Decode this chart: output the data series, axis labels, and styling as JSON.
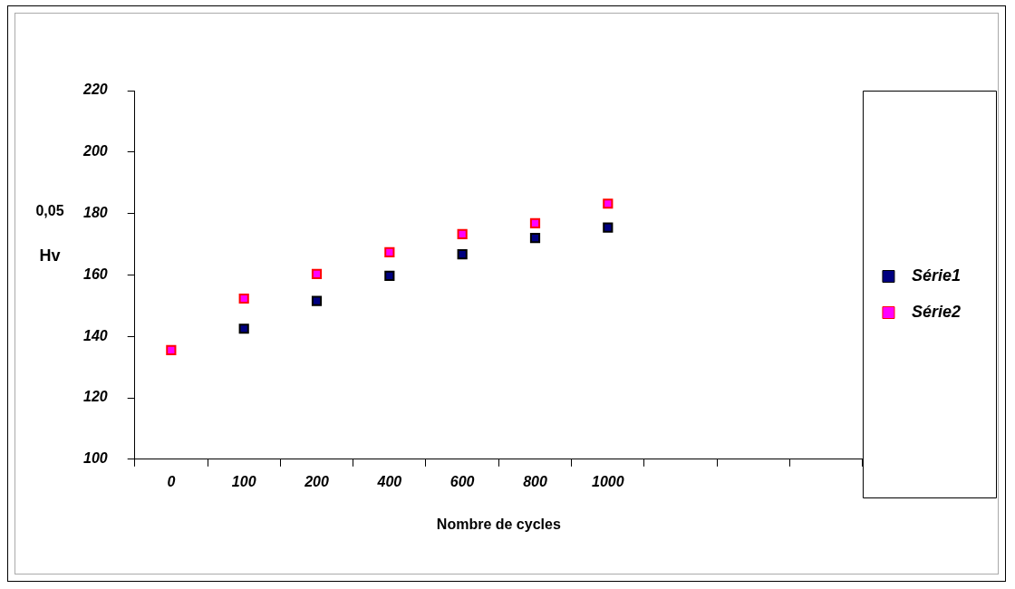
{
  "chart_data": {
    "type": "scatter",
    "xlabel": "Nombre de cycles",
    "ylabel": "Hv$_{0,05}$",
    "categories": [
      "0",
      "100",
      "200",
      "400",
      "600",
      "800",
      "1000",
      null,
      null,
      null
    ],
    "series": [
      {
        "name": "Série1",
        "color": "#000080",
        "values": [
          null,
          142.5,
          151.5,
          159.7,
          166.7,
          172,
          175.4,
          null,
          null,
          null
        ]
      },
      {
        "name": "Série2",
        "color": "#ff00ff",
        "values": [
          135.5,
          152.3,
          160.3,
          167.4,
          173.3,
          176.8,
          183.2,
          null,
          null,
          null
        ]
      }
    ],
    "ylim": [
      100,
      220
    ],
    "yticks": [
      100,
      120,
      140,
      160,
      180,
      200,
      220
    ],
    "grid": false,
    "legend": "right",
    "marker": "square"
  }
}
